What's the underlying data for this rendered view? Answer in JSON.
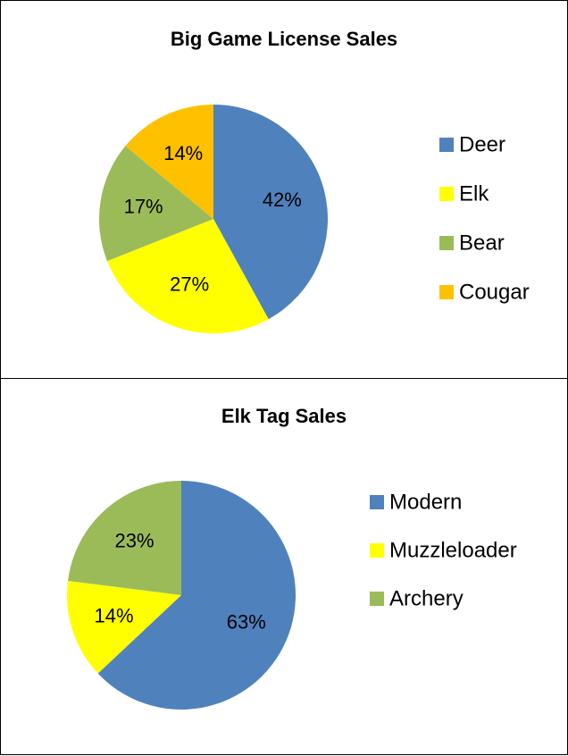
{
  "chart_data": [
    {
      "type": "pie",
      "title": "Big Game License Sales",
      "categories": [
        "Deer",
        "Elk",
        "Bear",
        "Cougar"
      ],
      "values": [
        42,
        27,
        17,
        14
      ],
      "value_labels": [
        "42%",
        "27%",
        "17%",
        "14%"
      ],
      "colors": [
        "#4f81bd",
        "#ffff00",
        "#9bbb59",
        "#ffc000"
      ],
      "legend": "right"
    },
    {
      "type": "pie",
      "title": "Elk Tag Sales",
      "categories": [
        "Modern",
        "Muzzleloader",
        "Archery"
      ],
      "values": [
        63,
        14,
        23
      ],
      "value_labels": [
        "63%",
        "14%",
        "23%"
      ],
      "colors": [
        "#4f81bd",
        "#ffff00",
        "#9bbb59"
      ],
      "legend": "right"
    }
  ]
}
